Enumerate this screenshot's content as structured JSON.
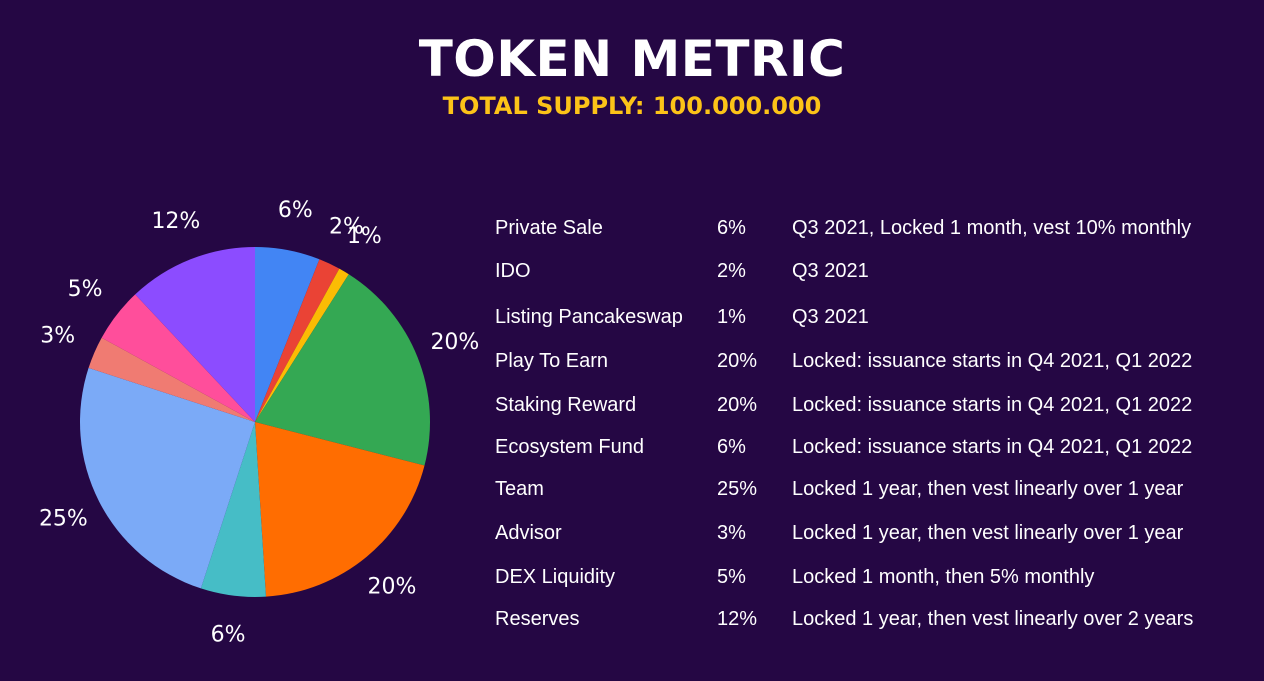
{
  "header": {
    "title": "TOKEN METRIC",
    "subtitle": "TOTAL SUPPLY: 100.000.000"
  },
  "chart_data": {
    "type": "pie",
    "start_angle_deg": 0,
    "direction": "clockwise",
    "slices": [
      {
        "label": "6%",
        "value": 6,
        "color": "#4285f4"
      },
      {
        "label": "2%",
        "value": 2,
        "color": "#ea4335"
      },
      {
        "label": "1%",
        "value": 1,
        "color": "#fbbc04"
      },
      {
        "label": "20%",
        "value": 20,
        "color": "#34a853"
      },
      {
        "label": "20%",
        "value": 20,
        "color": "#ff6d01"
      },
      {
        "label": "6%",
        "value": 6,
        "color": "#46bdc6"
      },
      {
        "label": "25%",
        "value": 25,
        "color": "#7baaf7"
      },
      {
        "label": "3%",
        "value": 3,
        "color": "#f07b72"
      },
      {
        "label": "5%",
        "value": 5,
        "color": "#ff4e9b"
      },
      {
        "label": "12%",
        "value": 12,
        "color": "#8c4cff"
      }
    ]
  },
  "allocation": [
    {
      "name": "Private Sale",
      "percent": "6%",
      "description": "Q3 2021, Locked 1 month, vest 10% monthly"
    },
    {
      "name": "IDO",
      "percent": "2%",
      "description": "Q3 2021"
    },
    {
      "name": "Listing Pancakeswap",
      "percent": "1%",
      "description": "Q3 2021"
    },
    {
      "name": "Play To Earn",
      "percent": "20%",
      "description": "Locked: issuance starts in Q4 2021, Q1 2022"
    },
    {
      "name": "Staking Reward",
      "percent": "20%",
      "description": "Locked: issuance starts in Q4 2021, Q1 2022"
    },
    {
      "name": "Ecosystem Fund",
      "percent": "6%",
      "description": "Locked: issuance starts in Q4 2021, Q1 2022"
    },
    {
      "name": "Team",
      "percent": "25%",
      "description": "Locked 1 year, then vest linearly over 1 year"
    },
    {
      "name": "Advisor",
      "percent": "3%",
      "description": "Locked 1 year, then vest linearly over 1 year"
    },
    {
      "name": "DEX Liquidity",
      "percent": "5%",
      "description": "Locked 1 month, then 5% monthly"
    },
    {
      "name": "Reserves",
      "percent": "12%",
      "description": "Locked 1 year, then vest linearly over 2 years"
    }
  ]
}
